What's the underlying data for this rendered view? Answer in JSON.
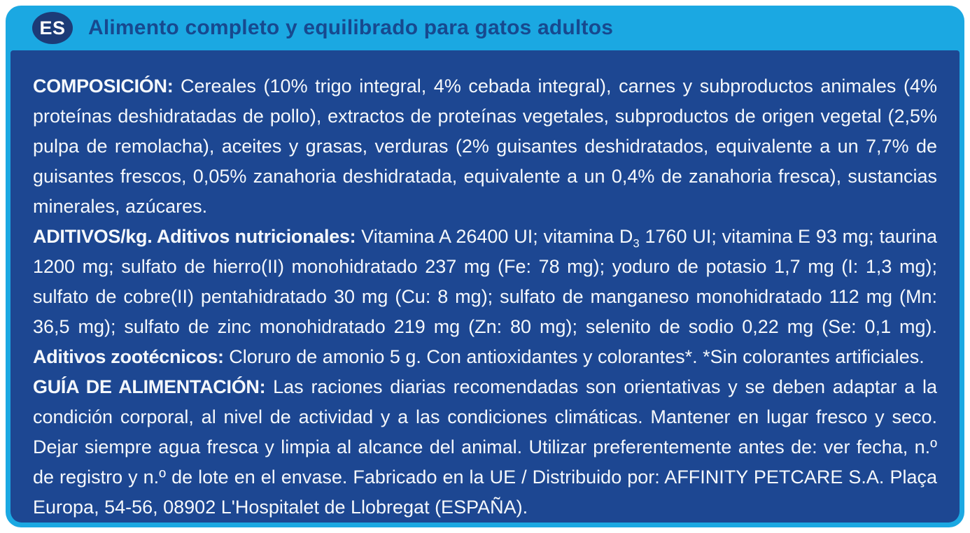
{
  "colors": {
    "header_bg": "#1BA8E2",
    "body_bg": "#1D4792",
    "badge_bg": "#1C3B77",
    "title_color": "#17498F",
    "body_text_color": "#F5F8FB"
  },
  "header": {
    "badge_label": "ES",
    "title": "Alimento completo y equilibrado para gatos adultos"
  },
  "body": {
    "composicion": {
      "heading": "COMPOSICIÓN:",
      "text": " Cereales (10% trigo integral, 4% cebada integral), carnes y subproductos animales (4% proteínas deshidratadas de pollo), extractos de proteínas vegetales, subproductos de origen vegetal (2,5% pulpa de remolacha), aceites y grasas, verduras (2% guisantes deshidratados, equivalente a un 7,7% de guisantes frescos, 0,05% zanahoria deshidratada, equivalente a un 0,4% de zanahoria fresca), sustancias minerales, azúcares."
    },
    "aditivos": {
      "heading": "ADITIVOS/kg. Aditivos nutricionales:",
      "text_before_sub": " Vitamina A 26400 UI; vitamina D",
      "subscript": "3",
      "text_after_sub": " 1760 UI; vitamina E 93 mg; taurina 1200 mg; sulfato de hierro(II) monohidratado 237 mg (Fe: 78 mg); yoduro de potasio 1,7 mg (I: 1,3 mg); sulfato de cobre(II) pentahidratado 30 mg (Cu: 8 mg); sulfato de manganeso monohidratado 112 mg (Mn: 36,5 mg); sulfato de zinc monohidratado 219 mg (Zn: 80 mg); selenito de sodio 0,22 mg (Se: 0,1 mg). ",
      "heading2": "Aditivos zootécnicos:",
      "text2": " Cloruro de amonio 5 g. Con antioxidantes y colorantes*. *Sin colorantes artificiales."
    },
    "guia": {
      "heading": "GUÍA DE ALIMENTACIÓN:",
      "text": " Las raciones diarias recomendadas son orientativas y se deben adaptar a la condición corporal, al nivel de actividad y a las condiciones climáticas. Mantener en lugar fresco y seco. Dejar siempre agua fresca y limpia al alcance del animal. Utilizar preferentemente antes de: ver fecha, n.º de registro y n.º de lote en el envase. Fabricado en la UE / Distribuido por: AFFINITY PETCARE S.A. Plaça Europa, 54-56, 08902 L'Hospitalet de Llobregat (ESPAÑA)."
    }
  }
}
